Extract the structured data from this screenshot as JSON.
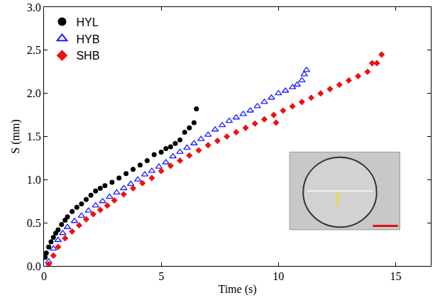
{
  "chart_data": {
    "type": "scatter",
    "x_label": "Time (s)",
    "y_label": "S (mm)",
    "xlim": [
      0,
      16.5
    ],
    "ylim": [
      0,
      3
    ],
    "xticks": [
      0,
      5,
      10,
      15
    ],
    "yticks": [
      {
        "value": 0,
        "label": "0.0"
      },
      0.5,
      {
        "value": 1,
        "label": "1.0"
      },
      1.5,
      {
        "value": 2,
        "label": "2.0"
      },
      2.5,
      {
        "value": 3,
        "label": "3.0"
      }
    ],
    "grid": false,
    "legend": "upper left",
    "series": [
      {
        "name": "HYL",
        "color": "#000000",
        "marker": "circle",
        "x": [
          0.05,
          0.1,
          0.2,
          0.3,
          0.4,
          0.5,
          0.6,
          0.75,
          0.9,
          1.0,
          1.2,
          1.4,
          1.6,
          1.8,
          2.0,
          2.2,
          2.4,
          2.6,
          2.9,
          3.2,
          3.5,
          3.8,
          4.1,
          4.4,
          4.7,
          5.0,
          5.2,
          5.4,
          5.6,
          5.8,
          6.0,
          6.2,
          6.4,
          6.5
        ],
        "values": [
          0.1,
          0.15,
          0.22,
          0.28,
          0.33,
          0.38,
          0.42,
          0.48,
          0.53,
          0.57,
          0.63,
          0.68,
          0.72,
          0.77,
          0.82,
          0.87,
          0.9,
          0.93,
          0.97,
          1.02,
          1.07,
          1.12,
          1.17,
          1.22,
          1.29,
          1.32,
          1.36,
          1.38,
          1.42,
          1.46,
          1.55,
          1.6,
          1.66,
          1.82
        ]
      },
      {
        "name": "HYB",
        "color": "#1f1fff",
        "marker": "triangle-up-open",
        "x": [
          0.2,
          0.4,
          0.6,
          0.8,
          1.0,
          1.3,
          1.6,
          1.9,
          2.2,
          2.5,
          2.8,
          3.1,
          3.4,
          3.7,
          4.0,
          4.3,
          4.6,
          4.9,
          5.2,
          5.5,
          5.8,
          6.1,
          6.4,
          6.7,
          7.0,
          7.3,
          7.6,
          7.9,
          8.2,
          8.5,
          8.8,
          9.1,
          9.4,
          9.7,
          10.0,
          10.3,
          10.6,
          10.8,
          11.0,
          11.1,
          11.2
        ],
        "values": [
          0.05,
          0.2,
          0.3,
          0.38,
          0.45,
          0.52,
          0.58,
          0.64,
          0.7,
          0.75,
          0.8,
          0.85,
          0.9,
          0.95,
          1.0,
          1.06,
          1.1,
          1.15,
          1.2,
          1.27,
          1.32,
          1.37,
          1.42,
          1.47,
          1.52,
          1.58,
          1.63,
          1.68,
          1.72,
          1.76,
          1.8,
          1.85,
          1.9,
          1.95,
          2.0,
          2.03,
          2.07,
          2.1,
          2.15,
          2.22,
          2.27
        ]
      },
      {
        "name": "SHB",
        "color": "#ee1111",
        "marker": "diamond",
        "x": [
          0.2,
          0.4,
          0.6,
          0.9,
          1.2,
          1.5,
          1.8,
          2.1,
          2.4,
          2.7,
          3.0,
          3.4,
          3.8,
          4.2,
          4.6,
          5.0,
          5.4,
          5.8,
          6.2,
          6.6,
          7.0,
          7.4,
          7.8,
          8.2,
          8.6,
          9.0,
          9.4,
          9.8,
          9.9,
          10.2,
          10.6,
          11.0,
          11.4,
          11.8,
          12.2,
          12.6,
          13.0,
          13.4,
          13.8,
          14.0,
          14.2,
          14.4
        ],
        "values": [
          0.02,
          0.12,
          0.22,
          0.32,
          0.4,
          0.47,
          0.54,
          0.6,
          0.65,
          0.7,
          0.76,
          0.83,
          0.9,
          0.96,
          1.02,
          1.1,
          1.16,
          1.22,
          1.28,
          1.34,
          1.4,
          1.45,
          1.5,
          1.55,
          1.6,
          1.65,
          1.7,
          1.75,
          1.66,
          1.8,
          1.85,
          1.9,
          1.95,
          2.0,
          2.05,
          2.1,
          2.15,
          2.2,
          2.25,
          2.35,
          2.35,
          2.45
        ]
      }
    ]
  }
}
